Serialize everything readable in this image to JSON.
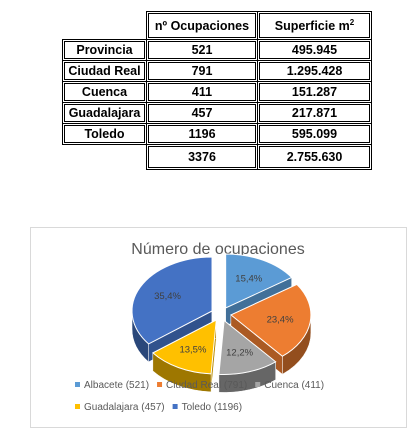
{
  "table": {
    "headers": [
      "",
      "nº Ocupaciones",
      "Superficie m",
      "2"
    ],
    "rows": [
      {
        "provincia": "Provincia",
        "ocupaciones": "521",
        "superficie": "495.945"
      },
      {
        "provincia": "Ciudad Real",
        "ocupaciones": "791",
        "superficie": "1.295.428"
      },
      {
        "provincia": "Cuenca",
        "ocupaciones": "411",
        "superficie": "151.287"
      },
      {
        "provincia": "Guadalajara",
        "ocupaciones": "457",
        "superficie": "217.871"
      },
      {
        "provincia": "Toledo",
        "ocupaciones": "1196",
        "superficie": "595.099"
      }
    ],
    "total": {
      "ocupaciones": "3376",
      "superficie": "2.755.630"
    }
  },
  "chart_data": {
    "type": "pie",
    "title": "Número de ocupaciones",
    "slices": [
      {
        "label": "Albacete (521)",
        "value": 521,
        "percent_label": "15,4%",
        "color": "#5b9bd5"
      },
      {
        "label": "Ciudad Real (791)",
        "value": 791,
        "percent_label": "23,4%",
        "color": "#ed7d31"
      },
      {
        "label": "Cuenca (411)",
        "value": 411,
        "percent_label": "12,2%",
        "color": "#a5a5a5"
      },
      {
        "label": "Guadalajara (457)",
        "value": 457,
        "percent_label": "13,5%",
        "color": "#ffc000"
      },
      {
        "label": "Toledo (1196)",
        "value": 1196,
        "percent_label": "35,4%",
        "color": "#4472c4"
      }
    ],
    "exploded": true,
    "style": "3d",
    "legend_position": "bottom"
  }
}
